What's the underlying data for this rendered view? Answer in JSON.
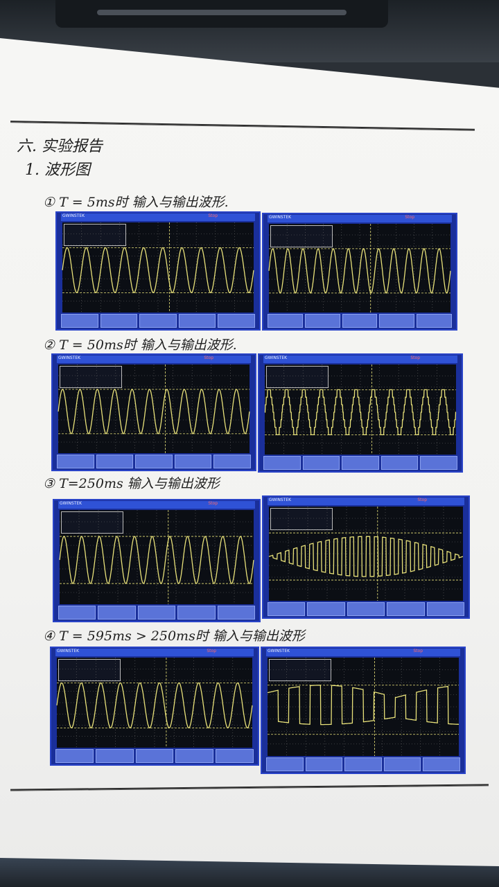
{
  "heading": {
    "section": "六. 实验报告",
    "sub": "1. 波形图"
  },
  "cases": [
    {
      "index": "①",
      "label": "T = 5ms时  输入与输出波形."
    },
    {
      "index": "②",
      "label": "T = 50ms时  输入与输出波形."
    },
    {
      "index": "③",
      "label": "T=250ms   输入与输出波形"
    },
    {
      "index": "④",
      "label": "T = 595ms > 250ms时  输入与输出波形"
    }
  ],
  "scope": {
    "brand": "GWINSTEK",
    "status": "Stop",
    "trace_color": "#e9e27a",
    "screen_color": "#0b0e14",
    "frame_color": "#1a2f9a"
  }
}
